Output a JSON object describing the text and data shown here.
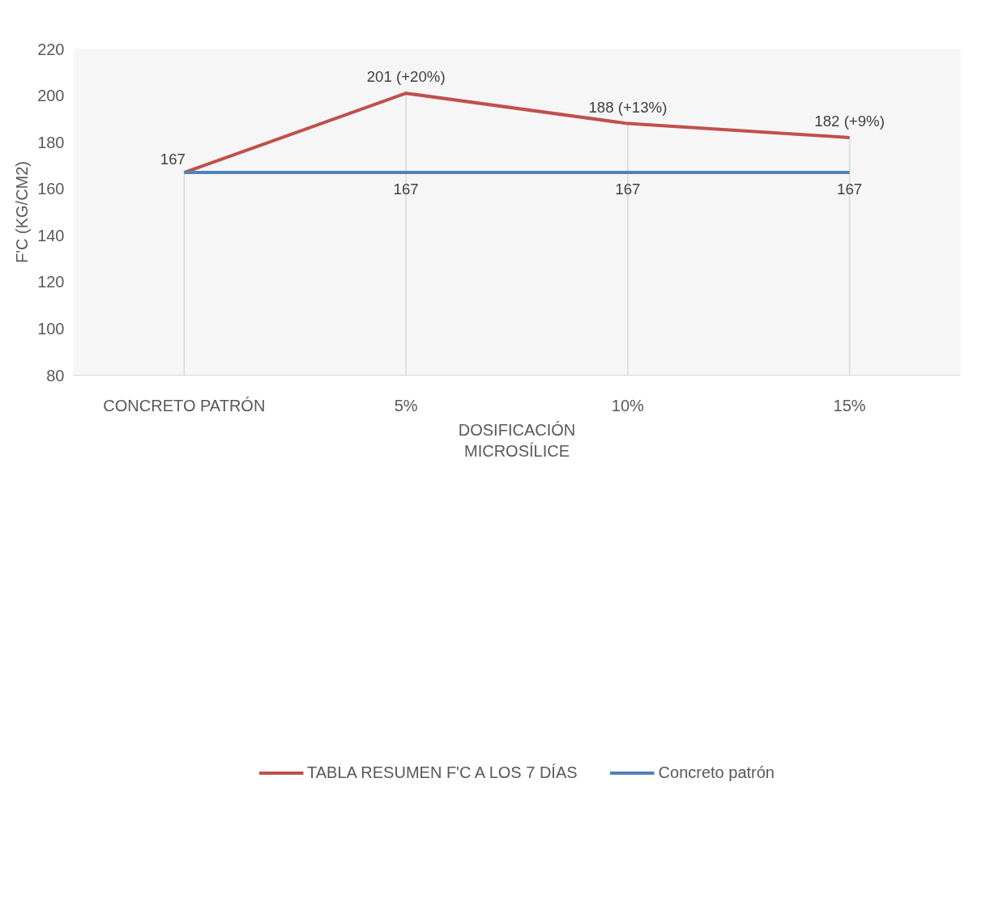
{
  "chart_data": {
    "type": "line",
    "xlabel": "DOSIFICACIÓN MICROSÍLICE",
    "ylabel": "F'C (KG/CM2)",
    "categories": [
      "CONCRETO PATRÓN",
      "5%",
      "10%",
      "15%"
    ],
    "series": [
      {
        "name": "TABLA RESUMEN F'C A LOS 7 DÍAS",
        "color": "#c0504d",
        "values": [
          167,
          201,
          188,
          182
        ],
        "value_labels": [
          "167",
          "201 (+20%)",
          "188 (+13%)",
          "182 (+9%)"
        ]
      },
      {
        "name": "Concreto patrón",
        "color": "#4f81bd",
        "values": [
          167,
          167,
          167,
          167
        ],
        "value_labels": [
          null,
          "167",
          "167",
          "167"
        ]
      }
    ],
    "ylim": [
      80,
      220
    ],
    "yticks": [
      80,
      100,
      120,
      140,
      160,
      180,
      200,
      220
    ],
    "grid": "x",
    "legend": "bottom",
    "marker": "none",
    "line_style": "solid"
  }
}
